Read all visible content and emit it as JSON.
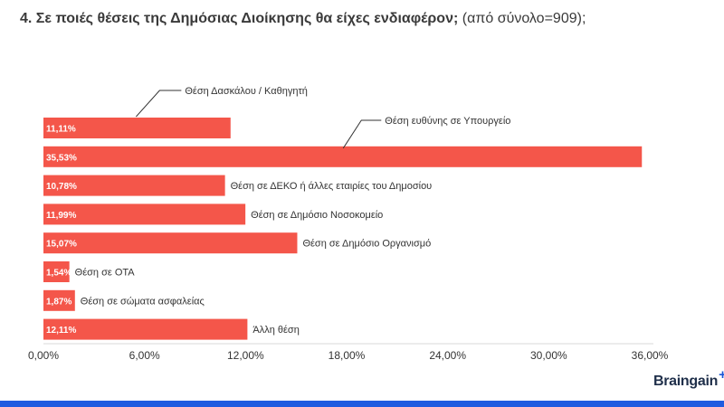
{
  "title": {
    "bold": "4. Σε ποιές θέσεις της Δημόσιας Διοίκησης θα είχες ενδιαφέρον;",
    "normal": " (από σύνολο=909);"
  },
  "chart_data": {
    "type": "bar",
    "orientation": "horizontal",
    "categories": [
      "Θέση Δασκάλου / Καθηγητή",
      "Θέση ευθύνης σε Υπουργείο",
      "Θέση σε ΔΕΚΟ ή άλλες εταιρίες του Δημοσίου",
      "Θέση σε Δημόσιο Νοσοκομείο",
      "Θέση σε Δημόσιο Οργανισμό",
      "Θέση σε ΟΤΑ",
      "Θέση σε σώματα ασφαλείας",
      "Άλλη θέση"
    ],
    "values": [
      11.11,
      35.53,
      10.78,
      11.99,
      15.07,
      1.54,
      1.87,
      12.11
    ],
    "data_labels": [
      "11,11%",
      "35,53%",
      "10,78%",
      "11,99%",
      "15,07%",
      "1,54%",
      "1,87%",
      "12,11%"
    ],
    "xlim": [
      0,
      36
    ],
    "xticks": [
      0,
      6,
      12,
      18,
      24,
      30,
      36
    ],
    "xtick_labels": [
      "0,00%",
      "6,00%",
      "12,00%",
      "18,00%",
      "24,00%",
      "30,00%",
      "36,00%"
    ],
    "grid": false,
    "legend": "none",
    "bar_color": "#f4564a",
    "label_color": "#ffffff",
    "callout_rows": [
      0,
      1
    ]
  },
  "brand": {
    "name": "Braingain",
    "plus": "+",
    "accent": "#1e5be0"
  }
}
